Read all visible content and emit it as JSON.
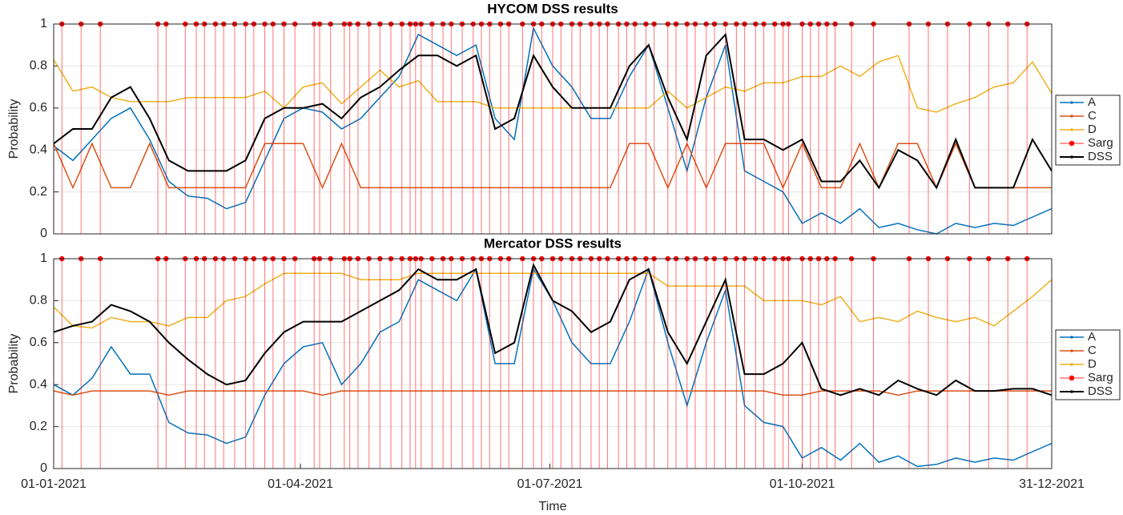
{
  "chart_data": [
    {
      "type": "line",
      "title": "HYCOM DSS results",
      "ylabel": "Probability",
      "xlim": [
        1,
        365
      ],
      "ylim": [
        0,
        1
      ],
      "yticks": [
        0,
        0.2,
        0.4,
        0.6,
        0.8,
        1
      ],
      "grid": true,
      "legend": "right",
      "x": [
        1,
        8,
        15,
        22,
        29,
        36,
        43,
        50,
        57,
        64,
        71,
        78,
        85,
        92,
        99,
        106,
        113,
        120,
        127,
        134,
        141,
        148,
        155,
        162,
        169,
        176,
        183,
        190,
        197,
        204,
        211,
        218,
        225,
        232,
        239,
        246,
        253,
        260,
        267,
        274,
        281,
        288,
        295,
        302,
        309,
        316,
        323,
        330,
        337,
        344,
        351,
        358,
        365
      ],
      "series": [
        {
          "name": "A",
          "color": "#0072BD",
          "values": [
            0.42,
            0.35,
            0.45,
            0.55,
            0.6,
            0.45,
            0.25,
            0.18,
            0.17,
            0.12,
            0.15,
            0.35,
            0.55,
            0.6,
            0.58,
            0.5,
            0.55,
            0.65,
            0.75,
            0.95,
            0.9,
            0.85,
            0.9,
            0.55,
            0.45,
            0.98,
            0.8,
            0.7,
            0.55,
            0.55,
            0.75,
            0.9,
            0.6,
            0.3,
            0.65,
            0.9,
            0.3,
            0.25,
            0.2,
            0.05,
            0.1,
            0.05,
            0.12,
            0.03,
            0.05,
            0.02,
            0.0,
            0.05,
            0.03,
            0.05,
            0.04,
            0.08,
            0.12
          ]
        },
        {
          "name": "C",
          "color": "#D95319",
          "values": [
            0.43,
            0.22,
            0.43,
            0.22,
            0.22,
            0.43,
            0.22,
            0.22,
            0.22,
            0.22,
            0.22,
            0.43,
            0.43,
            0.43,
            0.22,
            0.43,
            0.22,
            0.22,
            0.22,
            0.22,
            0.22,
            0.22,
            0.22,
            0.22,
            0.22,
            0.22,
            0.22,
            0.22,
            0.22,
            0.22,
            0.43,
            0.43,
            0.22,
            0.43,
            0.22,
            0.43,
            0.43,
            0.43,
            0.22,
            0.43,
            0.22,
            0.22,
            0.43,
            0.22,
            0.43,
            0.43,
            0.22,
            0.43,
            0.22,
            0.22,
            0.22,
            0.22,
            0.22
          ]
        },
        {
          "name": "D",
          "color": "#EDB120",
          "values": [
            0.83,
            0.68,
            0.7,
            0.65,
            0.63,
            0.63,
            0.63,
            0.65,
            0.65,
            0.65,
            0.65,
            0.68,
            0.6,
            0.7,
            0.72,
            0.62,
            0.7,
            0.78,
            0.7,
            0.73,
            0.63,
            0.63,
            0.63,
            0.6,
            0.6,
            0.6,
            0.6,
            0.6,
            0.6,
            0.6,
            0.6,
            0.6,
            0.68,
            0.6,
            0.65,
            0.7,
            0.68,
            0.72,
            0.72,
            0.75,
            0.75,
            0.8,
            0.75,
            0.82,
            0.85,
            0.6,
            0.58,
            0.62,
            0.65,
            0.7,
            0.72,
            0.82,
            0.67
          ]
        },
        {
          "name": "Sarg",
          "color": "#FF0000",
          "kind": "events",
          "x": [
            4,
            11,
            18,
            39,
            42,
            49,
            53,
            56,
            60,
            63,
            67,
            71,
            74,
            78,
            81,
            85,
            89,
            96,
            98,
            102,
            107,
            109,
            112,
            116,
            120,
            124,
            128,
            131,
            133,
            135,
            139,
            143,
            146,
            150,
            154,
            157,
            160,
            164,
            167,
            172,
            176,
            179,
            183,
            186,
            190,
            193,
            197,
            200,
            203,
            207,
            210,
            213,
            217,
            220,
            225,
            228,
            232,
            235,
            239,
            242,
            246,
            250,
            253,
            257,
            260,
            264,
            267,
            269,
            274,
            277,
            280,
            283,
            286,
            292,
            300,
            313,
            320,
            327,
            335,
            342,
            349,
            356
          ],
          "values": [
            1,
            1,
            1,
            1,
            1,
            1,
            1,
            1,
            1,
            1,
            1,
            1,
            1,
            1,
            1,
            1,
            1,
            1,
            1,
            1,
            1,
            1,
            1,
            1,
            1,
            1,
            1,
            1,
            1,
            1,
            1,
            1,
            1,
            1,
            1,
            1,
            1,
            1,
            1,
            1,
            1,
            1,
            1,
            1,
            1,
            1,
            1,
            1,
            1,
            1,
            1,
            1,
            1,
            1,
            1,
            1,
            1,
            1,
            1,
            1,
            1,
            1,
            1,
            1,
            1,
            1,
            1,
            1,
            1,
            1,
            1,
            1,
            1,
            1,
            1,
            1,
            1,
            1,
            1,
            1,
            1,
            1
          ]
        },
        {
          "name": "DSS",
          "color": "#000000",
          "values": [
            0.43,
            0.5,
            0.5,
            0.65,
            0.7,
            0.55,
            0.35,
            0.3,
            0.3,
            0.3,
            0.35,
            0.55,
            0.6,
            0.6,
            0.62,
            0.55,
            0.65,
            0.7,
            0.78,
            0.85,
            0.85,
            0.8,
            0.85,
            0.5,
            0.55,
            0.85,
            0.7,
            0.6,
            0.6,
            0.6,
            0.8,
            0.9,
            0.65,
            0.45,
            0.85,
            0.95,
            0.45,
            0.45,
            0.4,
            0.45,
            0.25,
            0.25,
            0.35,
            0.22,
            0.4,
            0.35,
            0.22,
            0.45,
            0.22,
            0.22,
            0.22,
            0.45,
            0.3
          ]
        }
      ]
    },
    {
      "type": "line",
      "title": "Mercator DSS results",
      "ylabel": "Probability",
      "xlabel": "Time",
      "xlim": [
        1,
        365
      ],
      "ylim": [
        0,
        1
      ],
      "yticks": [
        0,
        0.2,
        0.4,
        0.6,
        0.8,
        1
      ],
      "grid": true,
      "legend": "right",
      "xticks": [
        {
          "value": 1,
          "label": "01-01-2021"
        },
        {
          "value": 91,
          "label": "01-04-2021"
        },
        {
          "value": 182,
          "label": "01-07-2021"
        },
        {
          "value": 274,
          "label": "01-10-2021"
        },
        {
          "value": 365,
          "label": "31-12-2021"
        }
      ],
      "x": [
        1,
        8,
        15,
        22,
        29,
        36,
        43,
        50,
        57,
        64,
        71,
        78,
        85,
        92,
        99,
        106,
        113,
        120,
        127,
        134,
        141,
        148,
        155,
        162,
        169,
        176,
        183,
        190,
        197,
        204,
        211,
        218,
        225,
        232,
        239,
        246,
        253,
        260,
        267,
        274,
        281,
        288,
        295,
        302,
        309,
        316,
        323,
        330,
        337,
        344,
        351,
        358,
        365
      ],
      "series": [
        {
          "name": "A",
          "color": "#0072BD",
          "values": [
            0.4,
            0.35,
            0.43,
            0.58,
            0.45,
            0.45,
            0.22,
            0.17,
            0.16,
            0.12,
            0.15,
            0.35,
            0.5,
            0.58,
            0.6,
            0.4,
            0.5,
            0.65,
            0.7,
            0.9,
            0.85,
            0.8,
            0.95,
            0.5,
            0.5,
            0.95,
            0.8,
            0.6,
            0.5,
            0.5,
            0.7,
            0.95,
            0.6,
            0.3,
            0.6,
            0.85,
            0.3,
            0.22,
            0.2,
            0.05,
            0.1,
            0.04,
            0.12,
            0.03,
            0.06,
            0.01,
            0.02,
            0.05,
            0.03,
            0.05,
            0.04,
            0.08,
            0.12
          ]
        },
        {
          "name": "C",
          "color": "#D95319",
          "values": [
            0.37,
            0.35,
            0.37,
            0.37,
            0.37,
            0.37,
            0.35,
            0.37,
            0.37,
            0.37,
            0.37,
            0.37,
            0.37,
            0.37,
            0.35,
            0.37,
            0.37,
            0.37,
            0.37,
            0.37,
            0.37,
            0.37,
            0.37,
            0.37,
            0.37,
            0.37,
            0.37,
            0.37,
            0.37,
            0.37,
            0.37,
            0.37,
            0.37,
            0.37,
            0.37,
            0.37,
            0.37,
            0.37,
            0.35,
            0.35,
            0.37,
            0.37,
            0.37,
            0.37,
            0.35,
            0.37,
            0.37,
            0.37,
            0.37,
            0.37,
            0.37,
            0.37,
            0.37
          ]
        },
        {
          "name": "D",
          "color": "#EDB120",
          "values": [
            0.77,
            0.68,
            0.67,
            0.72,
            0.7,
            0.7,
            0.68,
            0.72,
            0.72,
            0.8,
            0.82,
            0.88,
            0.93,
            0.93,
            0.93,
            0.93,
            0.9,
            0.9,
            0.9,
            0.93,
            0.93,
            0.93,
            0.93,
            0.93,
            0.93,
            0.93,
            0.93,
            0.93,
            0.93,
            0.93,
            0.93,
            0.93,
            0.87,
            0.87,
            0.87,
            0.87,
            0.87,
            0.8,
            0.8,
            0.8,
            0.78,
            0.82,
            0.7,
            0.72,
            0.7,
            0.75,
            0.72,
            0.7,
            0.72,
            0.68,
            0.75,
            0.82,
            0.9
          ]
        },
        {
          "name": "Sarg",
          "color": "#FF0000",
          "kind": "events",
          "x": [
            4,
            11,
            18,
            39,
            42,
            49,
            53,
            56,
            60,
            63,
            67,
            71,
            74,
            78,
            81,
            85,
            89,
            96,
            98,
            102,
            107,
            109,
            112,
            116,
            120,
            124,
            128,
            131,
            133,
            135,
            139,
            143,
            146,
            150,
            154,
            157,
            160,
            164,
            167,
            172,
            176,
            179,
            183,
            186,
            190,
            193,
            197,
            200,
            203,
            207,
            210,
            213,
            217,
            220,
            225,
            228,
            232,
            235,
            239,
            242,
            246,
            250,
            253,
            257,
            260,
            264,
            267,
            269,
            274,
            277,
            280,
            283,
            286,
            292,
            300,
            313,
            320,
            327,
            335,
            342,
            349,
            356
          ],
          "values": [
            1,
            1,
            1,
            1,
            1,
            1,
            1,
            1,
            1,
            1,
            1,
            1,
            1,
            1,
            1,
            1,
            1,
            1,
            1,
            1,
            1,
            1,
            1,
            1,
            1,
            1,
            1,
            1,
            1,
            1,
            1,
            1,
            1,
            1,
            1,
            1,
            1,
            1,
            1,
            1,
            1,
            1,
            1,
            1,
            1,
            1,
            1,
            1,
            1,
            1,
            1,
            1,
            1,
            1,
            1,
            1,
            1,
            1,
            1,
            1,
            1,
            1,
            1,
            1,
            1,
            1,
            1,
            1,
            1,
            1,
            1,
            1,
            1,
            1,
            1,
            1,
            1,
            1,
            1,
            1,
            1,
            1
          ]
        },
        {
          "name": "DSS",
          "color": "#000000",
          "values": [
            0.65,
            0.68,
            0.7,
            0.78,
            0.75,
            0.7,
            0.6,
            0.52,
            0.45,
            0.4,
            0.42,
            0.55,
            0.65,
            0.7,
            0.7,
            0.7,
            0.75,
            0.8,
            0.85,
            0.95,
            0.9,
            0.9,
            0.95,
            0.55,
            0.6,
            0.97,
            0.8,
            0.75,
            0.65,
            0.7,
            0.9,
            0.95,
            0.65,
            0.5,
            0.7,
            0.9,
            0.45,
            0.45,
            0.5,
            0.6,
            0.38,
            0.35,
            0.38,
            0.35,
            0.42,
            0.38,
            0.35,
            0.42,
            0.37,
            0.37,
            0.38,
            0.38,
            0.35
          ]
        }
      ]
    }
  ]
}
